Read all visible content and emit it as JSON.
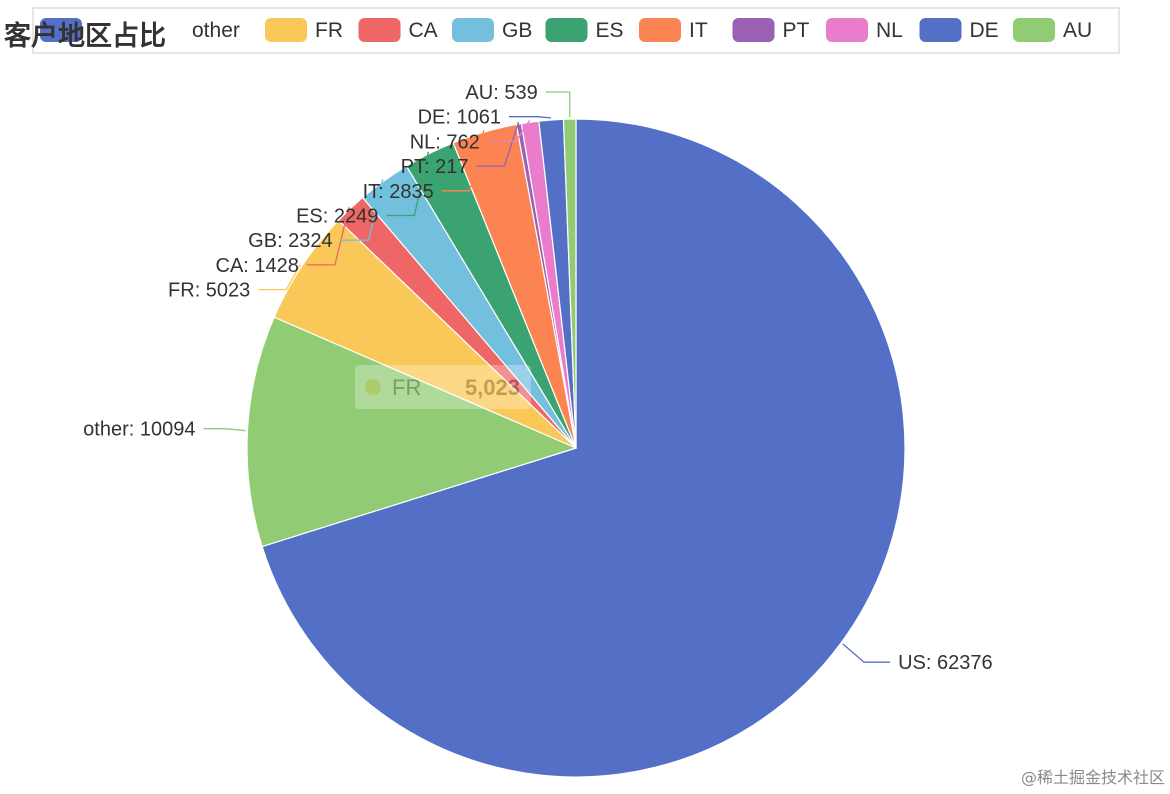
{
  "chart_data": {
    "type": "pie",
    "title": "客户地区占比",
    "start_angle_deg": 90,
    "direction": "clockwise",
    "legend_position": "top",
    "slices": [
      {
        "name": "US",
        "value": 62376,
        "color": "#5470c6",
        "in_legend": false
      },
      {
        "name": "other",
        "value": 10094,
        "color": "#91cc75",
        "in_legend": true
      },
      {
        "name": "FR",
        "value": 5023,
        "color": "#fac858",
        "in_legend": true
      },
      {
        "name": "CA",
        "value": 1428,
        "color": "#ee6666",
        "in_legend": true
      },
      {
        "name": "GB",
        "value": 2324,
        "color": "#73c0de",
        "in_legend": true
      },
      {
        "name": "ES",
        "value": 2249,
        "color": "#3ba272",
        "in_legend": true
      },
      {
        "name": "IT",
        "value": 2835,
        "color": "#fc8452",
        "in_legend": true
      },
      {
        "name": "PT",
        "value": 217,
        "color": "#9a60b4",
        "in_legend": true
      },
      {
        "name": "NL",
        "value": 762,
        "color": "#ea7ccc",
        "in_legend": true
      },
      {
        "name": "DE",
        "value": 1061,
        "color": "#5470c6",
        "in_legend": true
      },
      {
        "name": "AU",
        "value": 539,
        "color": "#91cc75",
        "in_legend": true
      }
    ],
    "legend_first_marker_color": "#5470c6",
    "tooltip": {
      "name": "FR",
      "value_text": "5,023",
      "color": "#fac858"
    }
  },
  "watermark": "@稀土掘金技术社区"
}
